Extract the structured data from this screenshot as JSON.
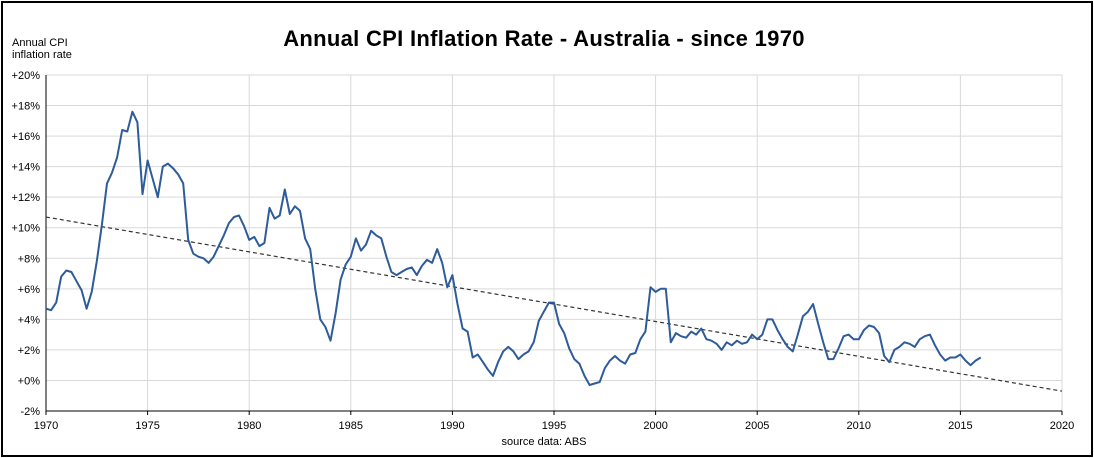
{
  "chart_data": {
    "type": "line",
    "title": "Annual CPI Inflation Rate - Australia - since 1970",
    "ylabel_lines": [
      "Annual CPI",
      "inflation rate"
    ],
    "source_note": "source data: ABS",
    "xlim": [
      1970,
      2020
    ],
    "ylim": [
      -2,
      20
    ],
    "x_ticks": [
      1970,
      1975,
      1980,
      1985,
      1990,
      1995,
      2000,
      2005,
      2010,
      2015,
      2020
    ],
    "x_tick_labels": [
      "1970",
      "1975",
      "1980",
      "1985",
      "1990",
      "1995",
      "2000",
      "2005",
      "2010",
      "2015",
      "2020"
    ],
    "y_ticks": [
      -2,
      0,
      2,
      4,
      6,
      8,
      10,
      12,
      14,
      16,
      18,
      20
    ],
    "y_tick_labels": [
      "-2%",
      "+0%",
      "+2%",
      "+4%",
      "+6%",
      "+8%",
      "+10%",
      "+12%",
      "+14%",
      "+16%",
      "+18%",
      "+20%"
    ],
    "grid": true,
    "colors": {
      "line": "#2e5b9a",
      "trend": "#333333",
      "grid": "#d9d9d9"
    },
    "series": [
      {
        "x": [
          1970.0,
          1970.25,
          1970.5,
          1970.75,
          1971.0,
          1971.25,
          1971.5,
          1971.75,
          1972.0,
          1972.25,
          1972.5,
          1972.75,
          1973.0,
          1973.25,
          1973.5,
          1973.75,
          1974.0,
          1974.25,
          1974.5,
          1974.75,
          1975.0,
          1975.25,
          1975.5,
          1975.75,
          1976.0,
          1976.25,
          1976.5,
          1976.75,
          1977.0,
          1977.25,
          1977.5,
          1977.75,
          1978.0,
          1978.25,
          1978.5,
          1978.75,
          1979.0,
          1979.25,
          1979.5,
          1979.75,
          1980.0,
          1980.25,
          1980.5,
          1980.75,
          1981.0,
          1981.25,
          1981.5,
          1981.75,
          1982.0,
          1982.25,
          1982.5,
          1982.75,
          1983.0,
          1983.25,
          1983.5,
          1983.75,
          1984.0,
          1984.25,
          1984.5,
          1984.75,
          1985.0,
          1985.25,
          1985.5,
          1985.75,
          1986.0,
          1986.25,
          1986.5,
          1986.75,
          1987.0,
          1987.25,
          1987.5,
          1987.75,
          1988.0,
          1988.25,
          1988.5,
          1988.75,
          1989.0,
          1989.25,
          1989.5,
          1989.75,
          1990.0,
          1990.25,
          1990.5,
          1990.75,
          1991.0,
          1991.25,
          1991.5,
          1991.75,
          1992.0,
          1992.25,
          1992.5,
          1992.75,
          1993.0,
          1993.25,
          1993.5,
          1993.75,
          1994.0,
          1994.25,
          1994.5,
          1994.75,
          1995.0,
          1995.25,
          1995.5,
          1995.75,
          1996.0,
          1996.25,
          1996.5,
          1996.75,
          1997.0,
          1997.25,
          1997.5,
          1997.75,
          1998.0,
          1998.25,
          1998.5,
          1998.75,
          1999.0,
          1999.25,
          1999.5,
          1999.75,
          2000.0,
          2000.25,
          2000.5,
          2000.75,
          2001.0,
          2001.25,
          2001.5,
          2001.75,
          2002.0,
          2002.25,
          2002.5,
          2002.75,
          2003.0,
          2003.25,
          2003.5,
          2003.75,
          2004.0,
          2004.25,
          2004.5,
          2004.75,
          2005.0,
          2005.25,
          2005.5,
          2005.75,
          2006.0,
          2006.25,
          2006.5,
          2006.75,
          2007.0,
          2007.25,
          2007.5,
          2007.75,
          2008.0,
          2008.25,
          2008.5,
          2008.75,
          2009.0,
          2009.25,
          2009.5,
          2009.75,
          2010.0,
          2010.25,
          2010.5,
          2010.75,
          2011.0,
          2011.25,
          2011.5,
          2011.75,
          2012.0,
          2012.25,
          2012.5,
          2012.75,
          2013.0,
          2013.25,
          2013.5,
          2013.75,
          2014.0,
          2014.25,
          2014.5,
          2014.75,
          2015.0,
          2015.25,
          2015.5,
          2015.75,
          2016.0
        ],
        "values": [
          4.7,
          4.6,
          5.1,
          6.8,
          7.2,
          7.1,
          6.5,
          5.9,
          4.7,
          5.8,
          7.8,
          10.2,
          12.9,
          13.6,
          14.6,
          16.4,
          16.3,
          17.6,
          16.9,
          12.2,
          14.4,
          13.2,
          12.0,
          14.0,
          14.2,
          13.9,
          13.5,
          12.9,
          9.2,
          8.3,
          8.1,
          8.0,
          7.7,
          8.1,
          8.8,
          9.5,
          10.3,
          10.7,
          10.8,
          10.1,
          9.2,
          9.4,
          8.8,
          9.0,
          11.3,
          10.6,
          10.8,
          12.5,
          10.9,
          11.4,
          11.1,
          9.3,
          8.6,
          6.0,
          4.0,
          3.5,
          2.6,
          4.4,
          6.6,
          7.6,
          8.1,
          9.3,
          8.5,
          8.9,
          9.8,
          9.5,
          9.3,
          8.1,
          7.1,
          6.9,
          7.1,
          7.3,
          7.4,
          6.9,
          7.5,
          7.9,
          7.7,
          8.6,
          7.7,
          6.1,
          6.9,
          5.0,
          3.4,
          3.2,
          1.5,
          1.7,
          1.2,
          0.7,
          0.3,
          1.2,
          1.9,
          2.2,
          1.9,
          1.4,
          1.7,
          1.9,
          2.5,
          3.9,
          4.5,
          5.1,
          5.1,
          3.7,
          3.1,
          2.1,
          1.4,
          1.1,
          0.3,
          -0.3,
          -0.2,
          -0.1,
          0.8,
          1.3,
          1.6,
          1.3,
          1.1,
          1.7,
          1.8,
          2.7,
          3.2,
          6.1,
          5.8,
          6.0,
          6.0,
          2.5,
          3.1,
          2.9,
          2.8,
          3.2,
          3.0,
          3.4,
          2.7,
          2.6,
          2.4,
          2.0,
          2.5,
          2.3,
          2.6,
          2.4,
          2.5,
          3.0,
          2.7,
          3.0,
          4.0,
          4.0,
          3.3,
          2.7,
          2.2,
          1.9,
          3.0,
          4.2,
          4.5,
          5.0,
          3.7,
          2.5,
          1.4,
          1.4,
          2.1,
          2.9,
          3.0,
          2.7,
          2.7,
          3.3,
          3.6,
          3.5,
          3.1,
          1.6,
          1.2,
          2.0,
          2.2,
          2.5,
          2.4,
          2.2,
          2.7,
          2.9,
          3.0,
          2.3,
          1.7,
          1.3,
          1.5,
          1.5,
          1.7,
          1.3,
          1.0,
          1.3,
          1.5
        ]
      }
    ],
    "trendline": {
      "x": [
        1970,
        2020
      ],
      "values": [
        10.7,
        -0.7
      ]
    }
  }
}
